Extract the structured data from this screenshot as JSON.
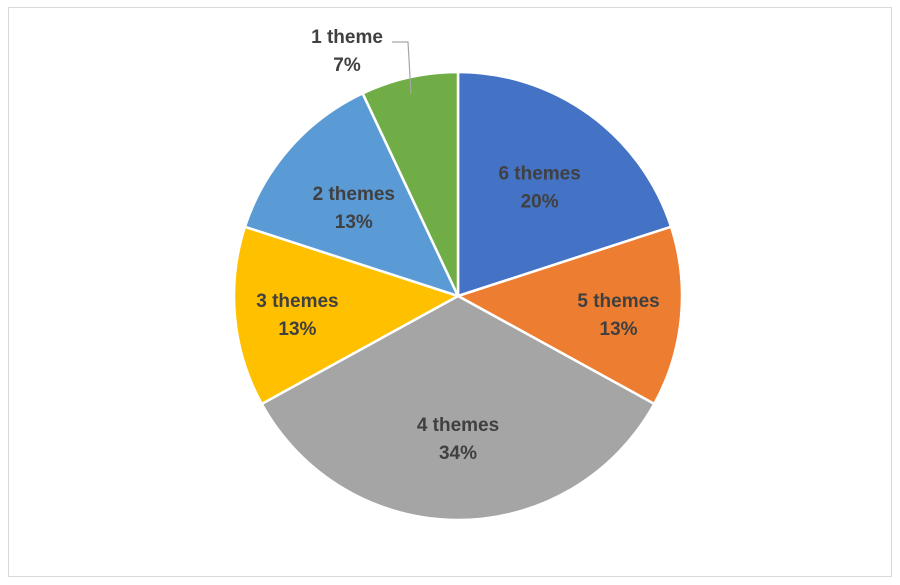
{
  "chart_data": {
    "type": "pie",
    "title": "",
    "slices": [
      {
        "label": "6 themes",
        "percent_label": "20%",
        "value": 20,
        "color": "#4472C4"
      },
      {
        "label": "5 themes",
        "percent_label": "13%",
        "value": 13,
        "color": "#ED7D31"
      },
      {
        "label": "4 themes",
        "percent_label": "34%",
        "value": 34,
        "color": "#A5A5A5"
      },
      {
        "label": "3 themes",
        "percent_label": "13%",
        "value": 13,
        "color": "#FFC000"
      },
      {
        "label": "2 themes",
        "percent_label": "13%",
        "value": 13,
        "color": "#5B9BD5"
      },
      {
        "label": "1 theme",
        "percent_label": "7%",
        "value": 7,
        "color": "#70AD47"
      }
    ],
    "legend": "none",
    "start_angle_deg": 0,
    "direction": "clockwise"
  }
}
